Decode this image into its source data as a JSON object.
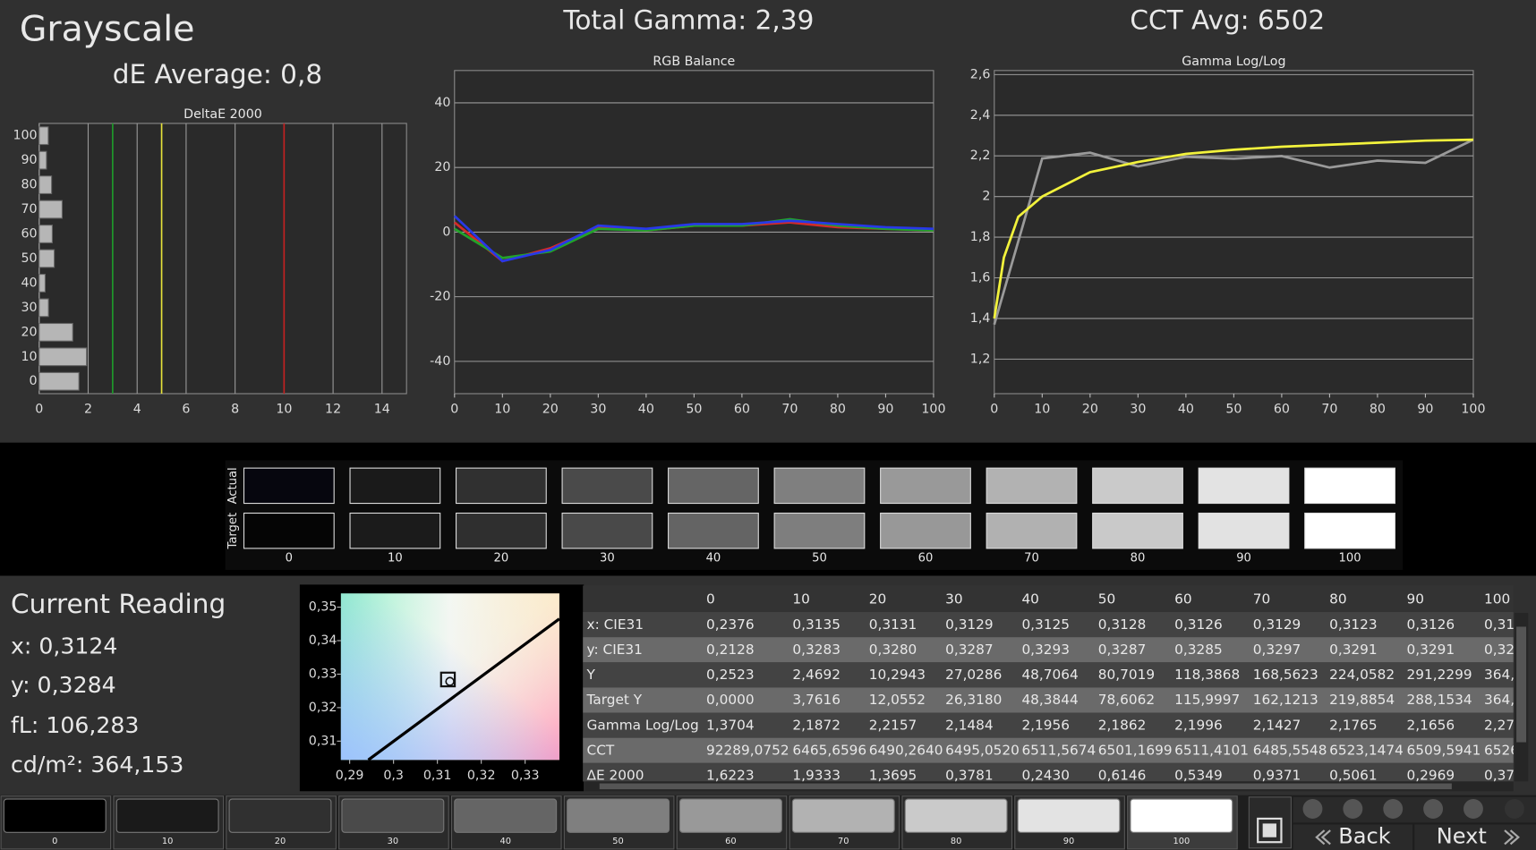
{
  "header": {
    "title": "Grayscale",
    "de_average": "dE Average: 0,8",
    "total_gamma": "Total Gamma: 2,39",
    "cct_avg": "CCT Avg: 6502"
  },
  "chart_data": [
    {
      "type": "bar",
      "orientation": "horizontal",
      "title": "DeltaE 2000",
      "categories": [
        "0",
        "10",
        "20",
        "30",
        "40",
        "50",
        "60",
        "70",
        "80",
        "90",
        "100"
      ],
      "values": [
        1.6223,
        1.9333,
        1.3695,
        0.3781,
        0.243,
        0.6146,
        0.5349,
        0.9371,
        0.5061,
        0.2969,
        0.37
      ],
      "color": "#cfcfcf",
      "xlim": [
        0,
        15
      ],
      "xticks": [
        0,
        2,
        4,
        6,
        8,
        10,
        12,
        14
      ],
      "grid": "x",
      "reference_lines": [
        {
          "value": 3,
          "color": "#1f9a2a"
        },
        {
          "value": 5,
          "color": "#e6e23a"
        },
        {
          "value": 10,
          "color": "#c42020"
        }
      ]
    },
    {
      "type": "line",
      "title": "RGB Balance",
      "x": [
        0,
        10,
        20,
        30,
        40,
        50,
        60,
        70,
        80,
        90,
        100
      ],
      "series": [
        {
          "color": "#d42a2a",
          "values": [
            3,
            -9,
            -5,
            1.5,
            0.5,
            2,
            2,
            3,
            1.5,
            1,
            0.5
          ]
        },
        {
          "color": "#22a32a",
          "values": [
            1,
            -8,
            -6,
            1,
            0.5,
            2,
            2,
            4,
            2,
            1,
            0.5
          ]
        },
        {
          "color": "#2838e8",
          "values": [
            5,
            -9,
            -5.5,
            2,
            1,
            2.5,
            2.5,
            3.5,
            2.5,
            1.5,
            1
          ]
        }
      ],
      "xlim": [
        0,
        100
      ],
      "xticks": [
        0,
        10,
        20,
        30,
        40,
        50,
        60,
        70,
        80,
        90,
        100
      ],
      "ylim": [
        -50,
        50
      ],
      "yticks": [
        -40,
        -20,
        0,
        20,
        40
      ],
      "grid": "y"
    },
    {
      "type": "line",
      "title": "Gamma Log/Log",
      "x": [
        0,
        10,
        20,
        30,
        40,
        50,
        60,
        70,
        80,
        90,
        100
      ],
      "series": [
        {
          "color": "#9a9a9a",
          "values": [
            1.3704,
            2.1872,
            2.2157,
            2.1484,
            2.1956,
            2.1862,
            2.1996,
            2.1427,
            2.1765,
            2.1656,
            2.28
          ]
        },
        {
          "color": "#f2f23c",
          "x": [
            0,
            2,
            5,
            10,
            20,
            30,
            40,
            50,
            60,
            70,
            80,
            90,
            100
          ],
          "values": [
            1.4,
            1.7,
            1.9,
            2.0,
            2.12,
            2.17,
            2.21,
            2.23,
            2.245,
            2.255,
            2.265,
            2.275,
            2.28
          ]
        }
      ],
      "xlim": [
        0,
        100
      ],
      "xticks": [
        0,
        10,
        20,
        30,
        40,
        50,
        60,
        70,
        80,
        90,
        100
      ],
      "ylim": [
        1.03,
        2.62
      ],
      "yticks": [
        {
          "value": 1.2,
          "label": "1,2"
        },
        {
          "value": 1.4,
          "label": "1,4"
        },
        {
          "value": 1.6,
          "label": "1,6"
        },
        {
          "value": 1.8,
          "label": "1,8"
        },
        {
          "value": 2,
          "label": "2"
        },
        {
          "value": 2.2,
          "label": "2,2"
        },
        {
          "value": 2.4,
          "label": "2,4"
        },
        {
          "value": 2.6,
          "label": "2,6"
        }
      ],
      "grid": "y"
    },
    {
      "type": "scatter",
      "x": [
        0.3124
      ],
      "values": [
        0.3284
      ],
      "color": "#111111",
      "xlim": [
        0.288,
        0.3378
      ],
      "ylim": [
        0.3044,
        0.3541
      ],
      "xticks": [
        {
          "value": 0.29,
          "label": "0,29"
        },
        {
          "value": 0.3,
          "label": "0,3"
        },
        {
          "value": 0.31,
          "label": "0,31"
        },
        {
          "value": 0.32,
          "label": "0,32"
        },
        {
          "value": 0.33,
          "label": "0,33"
        }
      ],
      "yticks": [
        {
          "value": 0.31,
          "label": "0,31"
        },
        {
          "value": 0.32,
          "label": "0,32"
        },
        {
          "value": 0.33,
          "label": "0,33"
        },
        {
          "value": 0.34,
          "label": "0,34"
        },
        {
          "value": 0.35,
          "label": "0,35"
        }
      ],
      "grid": false
    }
  ],
  "swatches": {
    "actual_label": "Actual",
    "target_label": "Target",
    "labels": [
      "0",
      "10",
      "20",
      "30",
      "40",
      "50",
      "60",
      "70",
      "80",
      "90",
      "100"
    ],
    "actual_colors": [
      "#06060e",
      "#1a1a1a",
      "#303030",
      "#4a4a4a",
      "#656565",
      "#7f7f7f",
      "#999999",
      "#b2b2b2",
      "#cacaca",
      "#e3e3e3",
      "#ffffff"
    ],
    "target_colors": [
      "#050505",
      "#1b1b1b",
      "#2f2f2f",
      "#494949",
      "#646464",
      "#7e7e7e",
      "#989898",
      "#b1b1b1",
      "#c9c9c9",
      "#e2e2e2",
      "#ffffff"
    ]
  },
  "current_reading": {
    "title": "Current Reading",
    "x": "x: 0,3124",
    "y": "y: 0,3284",
    "fl": "fL: 106,283",
    "cdm2": "cd/m²: 364,153"
  },
  "table": {
    "columns": [
      "0",
      "10",
      "20",
      "30",
      "40",
      "50",
      "60",
      "70",
      "80",
      "90",
      "100"
    ],
    "rows": [
      {
        "label": "x: CIE31",
        "values": [
          "0,2376",
          "0,3135",
          "0,3131",
          "0,3129",
          "0,3125",
          "0,3128",
          "0,3126",
          "0,3129",
          "0,3123",
          "0,3126",
          "0,31"
        ]
      },
      {
        "label": "y: CIE31",
        "values": [
          "0,2128",
          "0,3283",
          "0,3280",
          "0,3287",
          "0,3293",
          "0,3287",
          "0,3285",
          "0,3297",
          "0,3291",
          "0,3291",
          "0,32"
        ]
      },
      {
        "label": "Y",
        "values": [
          "0,2523",
          "2,4692",
          "10,2943",
          "27,0286",
          "48,7064",
          "80,7019",
          "118,3868",
          "168,5623",
          "224,0582",
          "291,2299",
          "364,"
        ]
      },
      {
        "label": "Target Y",
        "values": [
          "0,0000",
          "3,7616",
          "12,0552",
          "26,3180",
          "48,3844",
          "78,6062",
          "115,9997",
          "162,1213",
          "219,8854",
          "288,1534",
          "364,"
        ]
      },
      {
        "label": "Gamma Log/Log",
        "values": [
          "1,3704",
          "2,1872",
          "2,2157",
          "2,1484",
          "2,1956",
          "2,1862",
          "2,1996",
          "2,1427",
          "2,1765",
          "2,1656",
          "2,27"
        ]
      },
      {
        "label": "CCT",
        "values": [
          "92289,0752",
          "6465,6596",
          "6490,2640",
          "6495,0520",
          "6511,5674",
          "6501,1699",
          "6511,4101",
          "6485,5548",
          "6523,1474",
          "6509,5941",
          "6526"
        ]
      },
      {
        "label": "ΔE 2000",
        "values": [
          "1,6223",
          "1,9333",
          "1,3695",
          "0,3781",
          "0,2430",
          "0,6146",
          "0,5349",
          "0,9371",
          "0,5061",
          "0,2969",
          "0,37"
        ]
      }
    ]
  },
  "toolbar": {
    "levels": [
      "0",
      "10",
      "20",
      "30",
      "40",
      "50",
      "60",
      "70",
      "80",
      "90",
      "100"
    ],
    "colors": [
      "#000000",
      "#1a1a1a",
      "#303030",
      "#4a4a4a",
      "#656565",
      "#7f7f7f",
      "#999999",
      "#b2b2b2",
      "#cacaca",
      "#e3e3e3",
      "#ffffff"
    ],
    "back": "Back",
    "next": "Next"
  }
}
